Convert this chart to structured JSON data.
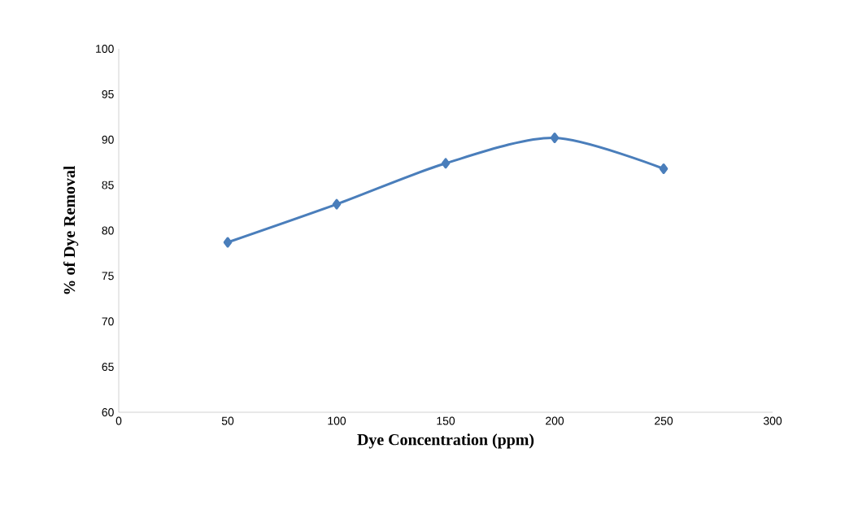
{
  "chart_data": {
    "type": "line",
    "xlabel": "Dye Concentration (ppm)",
    "ylabel": "% of Dye Removal",
    "x": [
      50,
      100,
      150,
      200,
      250
    ],
    "series": [
      {
        "color": "#4a7ebb",
        "values": [
          78.7,
          82.9,
          87.4,
          90.2,
          86.8
        ]
      }
    ],
    "xlim": [
      0,
      300
    ],
    "xticks": [
      0,
      50,
      100,
      150,
      200,
      250,
      300
    ],
    "ylim": [
      60,
      100
    ],
    "yticks": [
      60,
      65,
      70,
      75,
      80,
      85,
      90,
      95,
      100
    ],
    "grid": false,
    "marker": "diamond",
    "line_style": "solid"
  }
}
